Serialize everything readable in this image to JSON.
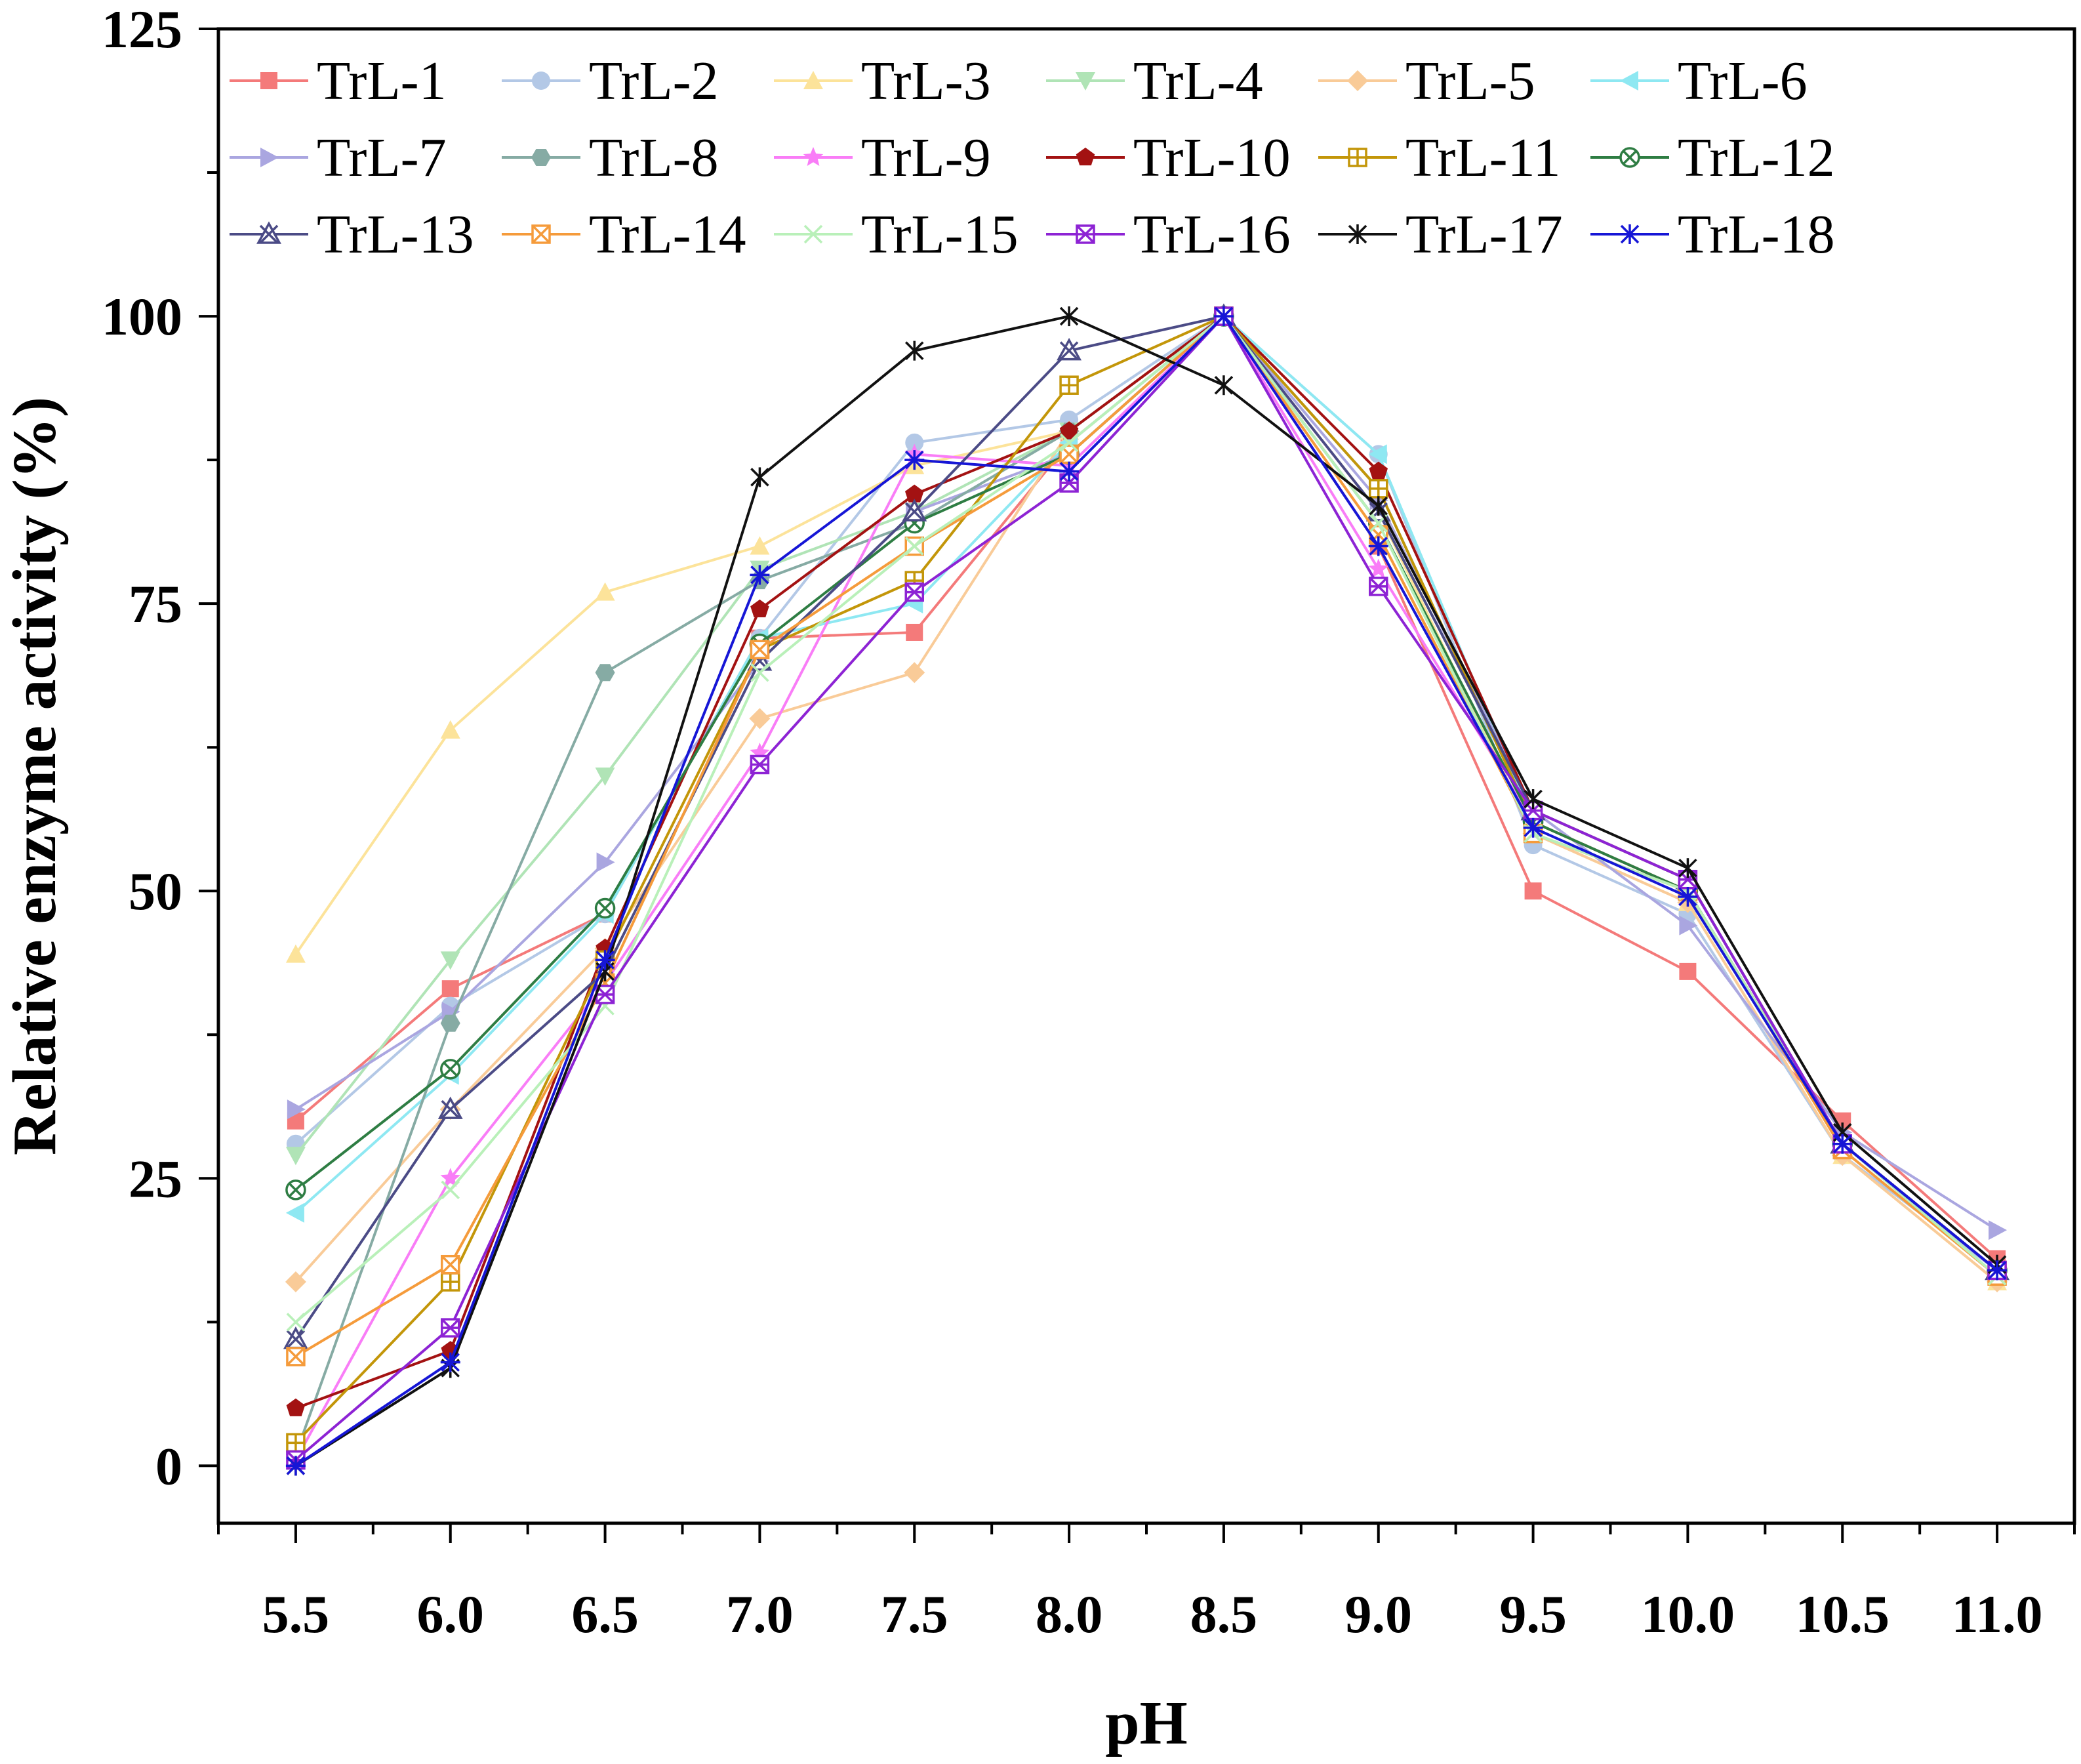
{
  "chart_data": {
    "type": "line",
    "title": "",
    "xlabel": "pH",
    "ylabel": "Relative enzyme activity (%)",
    "xlim": [
      5.25,
      11.25
    ],
    "ylim": [
      -5,
      125
    ],
    "x": [
      5.5,
      6.0,
      6.5,
      7.0,
      7.5,
      8.0,
      8.5,
      9.0,
      9.5,
      10.0,
      10.5,
      11.0
    ],
    "x_tick_labels": [
      "5.5",
      "6.0",
      "6.5",
      "7.0",
      "7.5",
      "8.0",
      "8.5",
      "9.0",
      "9.5",
      "10.0",
      "10.5",
      "11.0"
    ],
    "y_ticks": [
      0,
      25,
      50,
      75,
      100,
      125
    ],
    "y_tick_labels": [
      "0",
      "25",
      "50",
      "75",
      "100",
      "125"
    ],
    "grid": false,
    "legend_position": "top",
    "series": [
      {
        "name": "TrL-1",
        "color": "#f47a7a",
        "marker": "square",
        "values": [
          30,
          41.5,
          48,
          72,
          72.5,
          89,
          100,
          80,
          50,
          43,
          30,
          18
        ]
      },
      {
        "name": "TrL-2",
        "color": "#b3c8e6",
        "marker": "circle",
        "values": [
          28,
          40,
          48,
          72,
          89,
          91,
          100,
          88,
          54,
          48,
          27,
          17
        ]
      },
      {
        "name": "TrL-3",
        "color": "#fce39a",
        "marker": "triangle-up",
        "values": [
          44.5,
          64,
          76,
          80,
          87,
          90,
          100,
          83,
          55,
          49,
          27,
          16
        ]
      },
      {
        "name": "TrL-4",
        "color": "#b0e4b6",
        "marker": "triangle-down",
        "values": [
          27,
          44,
          60,
          78,
          83,
          90,
          100,
          85,
          56,
          50,
          28,
          17
        ]
      },
      {
        "name": "TrL-5",
        "color": "#f9cb98",
        "marker": "diamond",
        "values": [
          16,
          31,
          45,
          65,
          69,
          90,
          100,
          81,
          55,
          49,
          27,
          16
        ]
      },
      {
        "name": "TrL-6",
        "color": "#8ee8f2",
        "marker": "triangle-left",
        "values": [
          22,
          34,
          48,
          72,
          75,
          89,
          100,
          88,
          56,
          50,
          28,
          17
        ]
      },
      {
        "name": "TrL-7",
        "color": "#aaa6e0",
        "marker": "triangle-right",
        "values": [
          31,
          39.5,
          52.5,
          70,
          83,
          88,
          100,
          84,
          57,
          47,
          29,
          20.5
        ]
      },
      {
        "name": "TrL-8",
        "color": "#86aba4",
        "marker": "hexagon",
        "values": [
          1,
          38.5,
          69,
          77,
          82,
          90,
          100,
          85,
          56,
          50,
          28,
          17
        ]
      },
      {
        "name": "TrL-9",
        "color": "#f97df7",
        "marker": "star",
        "values": [
          0.5,
          25,
          42,
          62,
          88,
          87,
          100,
          78,
          56,
          50,
          28,
          17
        ]
      },
      {
        "name": "TrL-10",
        "color": "#a31212",
        "marker": "pentagon",
        "values": [
          5,
          10,
          45,
          74.5,
          84.5,
          90,
          100,
          86.5,
          57,
          51,
          28,
          17
        ]
      },
      {
        "name": "TrL-11",
        "color": "#c39609",
        "marker": "square-open-plus",
        "values": [
          2,
          16,
          44,
          71,
          77,
          94,
          100,
          85,
          56,
          50,
          28,
          17
        ]
      },
      {
        "name": "TrL-12",
        "color": "#2e7d43",
        "marker": "circle-open-x",
        "values": [
          24,
          34.5,
          48.5,
          71.5,
          82,
          88,
          100,
          82,
          56,
          50,
          28,
          17
        ]
      },
      {
        "name": "TrL-13",
        "color": "#4b4b86",
        "marker": "triangle-open-x",
        "values": [
          11,
          31,
          43,
          70,
          83,
          97,
          100,
          83,
          57,
          51,
          28,
          17
        ]
      },
      {
        "name": "TrL-14",
        "color": "#f59b3b",
        "marker": "square-open-x",
        "values": [
          9.5,
          17.5,
          42,
          71,
          80,
          88,
          100,
          81,
          55,
          50,
          27.5,
          16.5
        ]
      },
      {
        "name": "TrL-15",
        "color": "#b9f0b9",
        "marker": "x",
        "values": [
          12.5,
          24,
          40,
          69,
          80,
          89,
          100,
          82,
          55,
          50,
          28,
          16.5
        ]
      },
      {
        "name": "TrL-16",
        "color": "#8d23d4",
        "marker": "square-open-x-alt",
        "values": [
          0.5,
          12,
          41,
          61,
          76,
          85.5,
          100,
          76.5,
          57,
          51,
          28,
          17
        ]
      },
      {
        "name": "TrL-17",
        "color": "#111111",
        "marker": "asterisk",
        "values": [
          0,
          8.5,
          43,
          86,
          97,
          100,
          94,
          83.5,
          58,
          52,
          29,
          17.5
        ]
      },
      {
        "name": "TrL-18",
        "color": "#1616d6",
        "marker": "asterisk-plus",
        "values": [
          0,
          9,
          44,
          77.5,
          87.5,
          86.5,
          100,
          80,
          55.5,
          49.5,
          28,
          17
        ]
      }
    ]
  }
}
